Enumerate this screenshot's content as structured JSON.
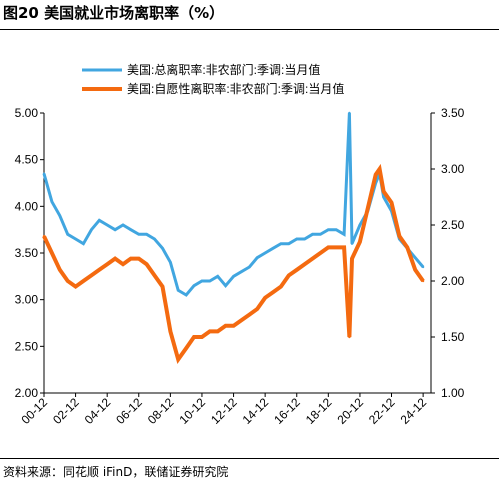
{
  "figure": {
    "title": "图20 美国就业市场离职率（%）",
    "source": "资料来源：同花顺 iFinD，联储证券研究院"
  },
  "colors": {
    "total": "#41a6e0",
    "non_self": "#f46a10"
  },
  "chart_data": {
    "type": "line",
    "title": "",
    "x_tick_labels": [
      "00-12",
      "02-12",
      "04-12",
      "06-12",
      "08-12",
      "10-12",
      "12-12",
      "14-12",
      "16-12",
      "18-12",
      "20-12",
      "22-12",
      "24-12"
    ],
    "y_left": {
      "ylim": [
        2.0,
        5.0
      ],
      "ticks": [
        "2.00",
        "2.50",
        "3.00",
        "3.50",
        "4.00",
        "4.50",
        "5.00"
      ]
    },
    "y_right": {
      "ylim": [
        1.0,
        3.5
      ],
      "ticks": [
        "1.00",
        "1.50",
        "2.00",
        "2.50",
        "3.00",
        "3.50"
      ]
    },
    "legend_position": "top-center",
    "grid": false,
    "series": [
      {
        "name": "美国:总离职率:非农部门:季调:当月值",
        "axis": "left",
        "color": "#41a6e0",
        "x": [
          "2000-12",
          "2001-06",
          "2001-12",
          "2002-06",
          "2002-12",
          "2003-06",
          "2003-12",
          "2004-06",
          "2004-12",
          "2005-06",
          "2005-12",
          "2006-06",
          "2006-12",
          "2007-06",
          "2007-12",
          "2008-06",
          "2008-12",
          "2009-06",
          "2009-12",
          "2010-06",
          "2010-12",
          "2011-06",
          "2011-12",
          "2012-06",
          "2012-12",
          "2013-06",
          "2013-12",
          "2014-06",
          "2014-12",
          "2015-06",
          "2015-12",
          "2016-06",
          "2016-12",
          "2017-06",
          "2017-12",
          "2018-06",
          "2018-12",
          "2019-06",
          "2019-12",
          "2020-04",
          "2020-06",
          "2020-12",
          "2021-06",
          "2021-12",
          "2022-03",
          "2022-06",
          "2022-12",
          "2023-06",
          "2023-12",
          "2024-06",
          "2024-12"
        ],
        "values": [
          4.35,
          4.05,
          3.9,
          3.7,
          3.65,
          3.6,
          3.75,
          3.85,
          3.8,
          3.75,
          3.8,
          3.75,
          3.7,
          3.7,
          3.65,
          3.55,
          3.4,
          3.1,
          3.05,
          3.15,
          3.2,
          3.2,
          3.25,
          3.15,
          3.25,
          3.3,
          3.35,
          3.45,
          3.5,
          3.55,
          3.6,
          3.6,
          3.65,
          3.65,
          3.7,
          3.7,
          3.75,
          3.75,
          3.7,
          5.0,
          3.6,
          3.8,
          3.95,
          4.25,
          4.35,
          4.1,
          3.95,
          3.65,
          3.55,
          3.45,
          3.35
        ]
      },
      {
        "name": "美国:自愿性离职率:非农部门:季调:当月值",
        "axis": "right",
        "color": "#f46a10",
        "x": [
          "2000-12",
          "2001-06",
          "2001-12",
          "2002-06",
          "2002-12",
          "2003-06",
          "2003-12",
          "2004-06",
          "2004-12",
          "2005-06",
          "2005-12",
          "2006-06",
          "2006-12",
          "2007-06",
          "2007-12",
          "2008-06",
          "2008-12",
          "2009-06",
          "2009-12",
          "2010-06",
          "2010-12",
          "2011-06",
          "2011-12",
          "2012-06",
          "2012-12",
          "2013-06",
          "2013-12",
          "2014-06",
          "2014-12",
          "2015-06",
          "2015-12",
          "2016-06",
          "2016-12",
          "2017-06",
          "2017-12",
          "2018-06",
          "2018-12",
          "2019-06",
          "2019-12",
          "2020-04",
          "2020-06",
          "2020-12",
          "2021-06",
          "2021-12",
          "2022-03",
          "2022-06",
          "2022-12",
          "2023-06",
          "2023-12",
          "2024-06",
          "2024-12"
        ],
        "values": [
          2.4,
          2.25,
          2.1,
          2.0,
          1.95,
          2.0,
          2.05,
          2.1,
          2.15,
          2.2,
          2.15,
          2.2,
          2.2,
          2.15,
          2.05,
          1.95,
          1.55,
          1.3,
          1.4,
          1.5,
          1.5,
          1.55,
          1.55,
          1.6,
          1.6,
          1.65,
          1.7,
          1.75,
          1.85,
          1.9,
          1.95,
          2.05,
          2.1,
          2.15,
          2.2,
          2.25,
          2.3,
          2.3,
          2.3,
          1.5,
          2.2,
          2.35,
          2.65,
          2.95,
          3.0,
          2.8,
          2.7,
          2.4,
          2.3,
          2.1,
          2.0
        ]
      }
    ]
  }
}
